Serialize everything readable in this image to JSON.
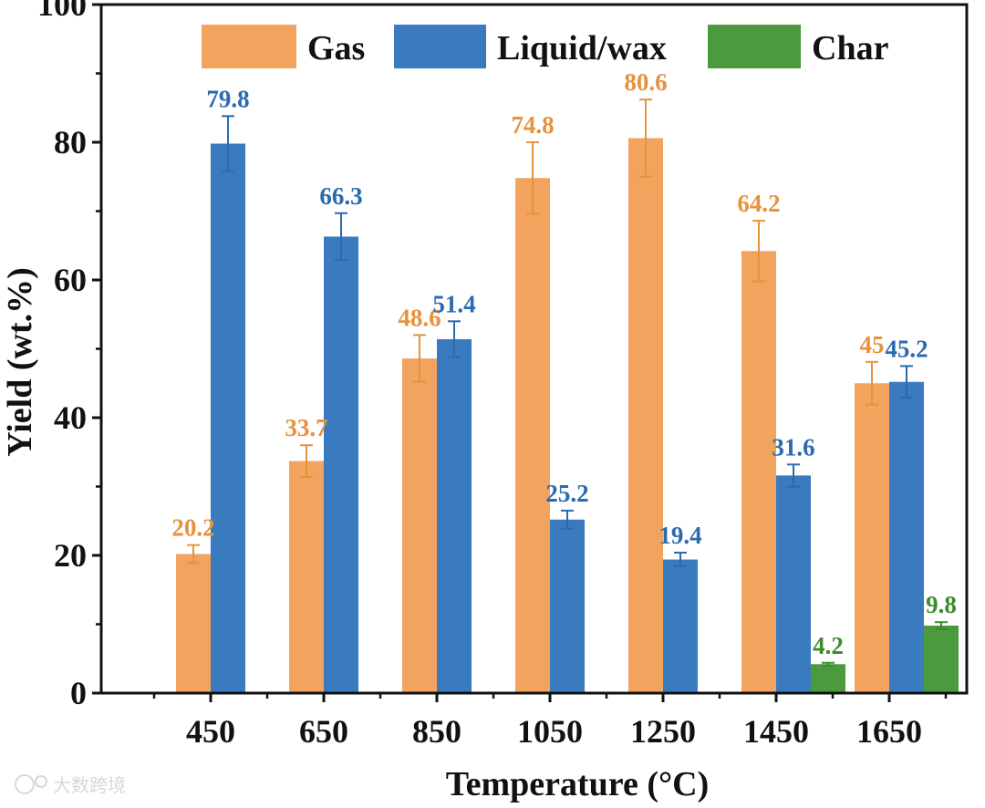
{
  "chart_data": {
    "type": "bar",
    "title": "",
    "xlabel": "Temperature (°C)",
    "ylabel": "Yield (wt.%)",
    "ylim": [
      0,
      100
    ],
    "yticks": [
      0,
      20,
      40,
      60,
      80,
      100
    ],
    "categories": [
      "450",
      "650",
      "850",
      "1050",
      "1250",
      "1450",
      "1650"
    ],
    "series": [
      {
        "name": "Gas",
        "color": "#f2a35e",
        "values": [
          20.2,
          33.7,
          48.6,
          74.8,
          80.6,
          64.2,
          45
        ],
        "errors": [
          1.3,
          2.3,
          3.4,
          5.2,
          5.6,
          4.4,
          3.1
        ],
        "labels": [
          "20.2",
          "33.7",
          "48.6",
          "74.8",
          "80.6",
          "64.2",
          "45"
        ]
      },
      {
        "name": "Liquid/wax",
        "color": "#3a7bbf",
        "values": [
          79.8,
          66.3,
          51.4,
          25.2,
          19.4,
          31.6,
          45.2
        ],
        "errors": [
          4.0,
          3.4,
          2.6,
          1.3,
          1.0,
          1.6,
          2.3
        ],
        "labels": [
          "79.8",
          "66.3",
          "51.4",
          "25.2",
          "19.4",
          "31.6",
          "45.2"
        ]
      },
      {
        "name": "Char",
        "color": "#4b9a3e",
        "values": [
          null,
          null,
          null,
          null,
          null,
          4.2,
          9.8
        ],
        "errors": [
          null,
          null,
          null,
          null,
          null,
          0.2,
          0.5
        ],
        "labels": [
          "",
          "",
          "",
          "",
          "",
          "4.2",
          "9.8"
        ]
      }
    ],
    "label_colors": {
      "Gas": "#e7923c",
      "Liquid/wax": "#2a6bb0",
      "Char": "#3e8a2e"
    },
    "legend": {
      "position": "top",
      "entries": [
        "Gas",
        "Liquid/wax",
        "Char"
      ]
    },
    "grid": false
  },
  "watermark": {
    "text": "大数跨境"
  }
}
